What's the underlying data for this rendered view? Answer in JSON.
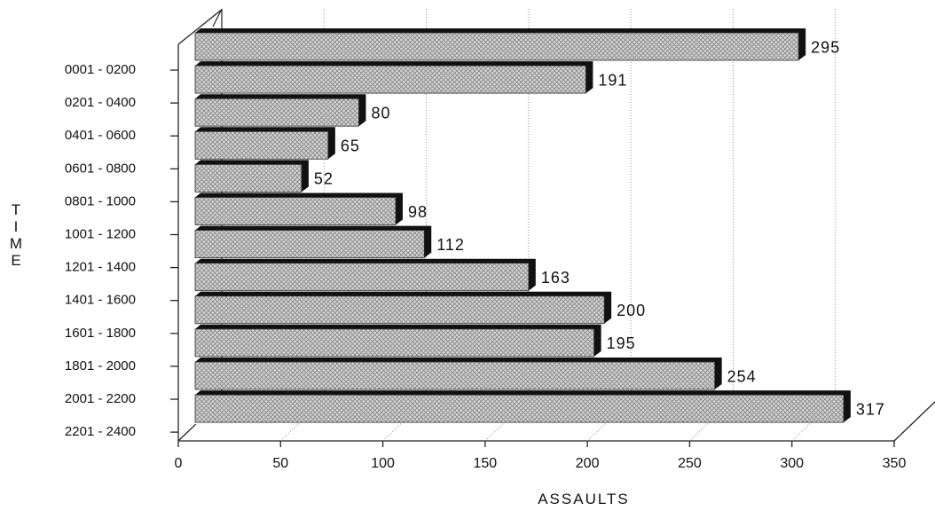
{
  "chart_data": {
    "type": "bar",
    "orientation": "horizontal",
    "title": "",
    "xlabel": "ASSAULTS",
    "ylabel": "TIME",
    "categories": [
      "0001 - 0200",
      "0201 - 0400",
      "0401 - 0600",
      "0601 - 0800",
      "0801 - 1000",
      "1001 - 1200",
      "1201 - 1400",
      "1401 - 1600",
      "1601 - 1800",
      "1801 - 2000",
      "2001 - 2200",
      "2201 - 2400"
    ],
    "values": [
      295,
      191,
      80,
      65,
      52,
      98,
      112,
      163,
      200,
      195,
      254,
      317
    ],
    "xlim": [
      0,
      350
    ],
    "xticks": [
      0,
      50,
      100,
      150,
      200,
      250,
      300,
      350
    ],
    "grid": true,
    "legend": "none",
    "style": "3d",
    "colors": {
      "bar_fill": "#d4d4d4",
      "bar_hatch": "#8a8a8a",
      "bar_shadow": "#111111",
      "axis": "#222222",
      "grid": "#777777"
    }
  }
}
